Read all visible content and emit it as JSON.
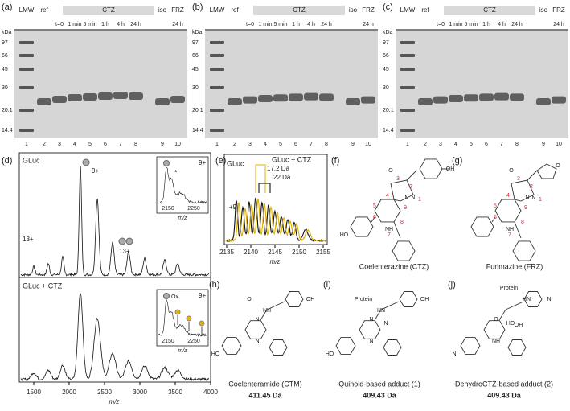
{
  "panels": {
    "a": "(a)",
    "b": "(b)",
    "c": "(c)",
    "d": "(d)",
    "e": "(e)"
  },
  "gel": {
    "ladder": "LMW",
    "ref": "ref",
    "group": "CTZ",
    "iso": "iso",
    "frz": "FRZ",
    "times": [
      "t=0",
      "1 min",
      "5 min",
      "1 h",
      "4 h",
      "24 h"
    ],
    "frz_time": "24 h",
    "unit": "kDa",
    "markers": [
      "97",
      "66",
      "45",
      "30",
      "20.1",
      "14.4"
    ],
    "lanes": [
      "1",
      "2",
      "3",
      "4",
      "5",
      "6",
      "7",
      "8",
      "9",
      "10"
    ]
  },
  "d": {
    "top_label": "GLuc",
    "bottom_label": "GLuc + CTZ",
    "charge_9": "9+",
    "charge_13": "13+",
    "star": "*",
    "ox": "Ox",
    "inset_ticks": [
      "2150",
      "2250"
    ],
    "x_ticks": [
      "1500",
      "2000",
      "2500",
      "3000",
      "3500",
      "4000"
    ],
    "x_label": "m/z"
  },
  "e": {
    "label": "GLuc",
    "label2": "GLuc + CTZ",
    "shift1": "17.2 Da",
    "shift2": "22 Da",
    "charge": "+9",
    "x_ticks": [
      "2135",
      "2140",
      "2145",
      "2150",
      "2155"
    ],
    "x_label": "m/z"
  },
  "structures": [
    {
      "label": "(f)",
      "name": "Coelenterazine (CTZ)",
      "atoms": [
        "O",
        "3",
        "2",
        "N",
        "1",
        "4",
        "5",
        "6",
        "7",
        "8",
        "9",
        "NH",
        "N",
        "HO",
        "OH"
      ]
    },
    {
      "label": "(g)",
      "name": "Furimazine (FRZ)",
      "atoms": [
        "O",
        "3",
        "2",
        "N",
        "1",
        "4",
        "5",
        "6",
        "7",
        "8",
        "9",
        "NH",
        "N",
        "O"
      ]
    },
    {
      "label": "(h)",
      "name": "Coelenteramide (CTM)",
      "mass": "411.45 Da",
      "atoms": [
        "O",
        "NH",
        "N",
        "N",
        "HO",
        "OH"
      ]
    },
    {
      "label": "(i)",
      "name": "Quinoid-based adduct (1)",
      "mass": "409.43 Da",
      "atoms": [
        "Protein",
        "HN",
        "N",
        "N",
        "HO",
        "OH",
        "N"
      ]
    },
    {
      "label": "(j)",
      "name": "DehydroCTZ-based adduct (2)",
      "mass": "409.43 Da",
      "atoms": [
        "Protein",
        "HN",
        "O",
        "NH",
        "N",
        "N",
        "HO",
        "OH"
      ]
    }
  ]
}
